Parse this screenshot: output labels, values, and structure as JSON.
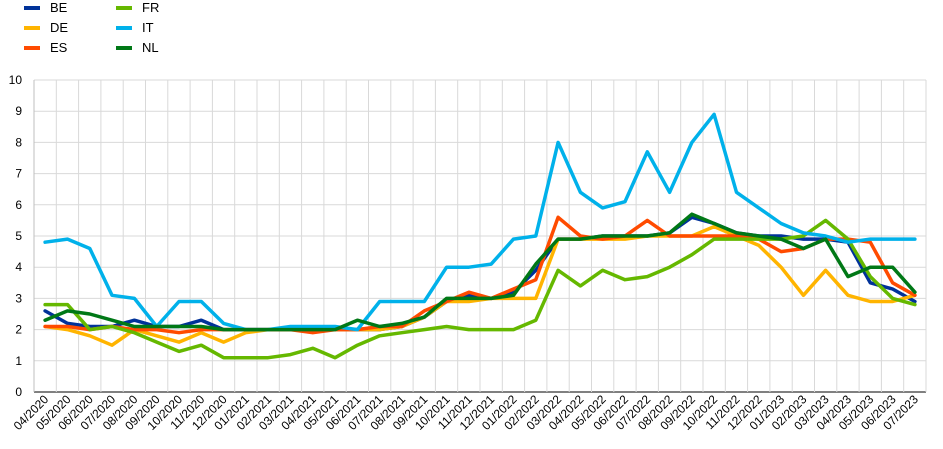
{
  "chart_data": {
    "type": "line",
    "title": "",
    "xlabel": "",
    "ylabel": "",
    "ylim": [
      0,
      10
    ],
    "yticks": [
      "0",
      "1",
      "2",
      "3",
      "4",
      "5",
      "6",
      "7",
      "8",
      "9",
      "10"
    ],
    "grid": true,
    "legend_position": "top-left",
    "categories": [
      "04/2020",
      "05/2020",
      "06/2020",
      "07/2020",
      "08/2020",
      "09/2020",
      "10/2020",
      "11/2020",
      "12/2020",
      "01/2021",
      "02/2021",
      "03/2021",
      "04/2021",
      "05/2021",
      "06/2021",
      "07/2021",
      "08/2021",
      "09/2021",
      "10/2021",
      "11/2021",
      "12/2021",
      "01/2022",
      "02/2022",
      "03/2022",
      "04/2022",
      "05/2022",
      "06/2022",
      "07/2022",
      "08/2022",
      "09/2022",
      "10/2022",
      "11/2022",
      "12/2022",
      "01/2023",
      "02/2023",
      "03/2023",
      "04/2023",
      "05/2023",
      "06/2023",
      "07/2023"
    ],
    "series": [
      {
        "name": "BE",
        "color": "#003299",
        "values": [
          2.6,
          2.2,
          2.1,
          2.1,
          2.3,
          2.1,
          2.1,
          2.3,
          2.0,
          2.0,
          2.0,
          2.0,
          2.0,
          2.0,
          2.0,
          2.0,
          2.1,
          2.4,
          2.9,
          3.1,
          3.0,
          3.2,
          3.9,
          4.9,
          4.9,
          5.0,
          5.0,
          5.0,
          5.1,
          5.6,
          5.4,
          5.1,
          5.0,
          5.0,
          4.9,
          4.9,
          4.8,
          3.5,
          3.3,
          2.9
        ]
      },
      {
        "name": "DE",
        "color": "#FFB400",
        "values": [
          2.1,
          2.0,
          1.8,
          1.5,
          2.0,
          1.8,
          1.6,
          1.9,
          1.6,
          1.9,
          2.0,
          2.0,
          2.0,
          2.0,
          2.0,
          2.0,
          2.1,
          2.4,
          2.9,
          2.9,
          3.0,
          3.0,
          3.0,
          4.9,
          4.9,
          4.9,
          4.9,
          5.0,
          5.0,
          5.0,
          5.3,
          5.0,
          4.7,
          4.0,
          3.1,
          3.9,
          3.1,
          2.9,
          2.9,
          3.1
        ]
      },
      {
        "name": "ES",
        "color": "#FF4B00",
        "values": [
          2.1,
          2.1,
          2.0,
          2.1,
          2.0,
          2.0,
          1.9,
          2.0,
          2.0,
          2.0,
          2.0,
          2.0,
          1.9,
          2.0,
          2.0,
          2.1,
          2.1,
          2.6,
          2.9,
          3.2,
          3.0,
          3.3,
          3.6,
          5.6,
          5.0,
          4.9,
          5.0,
          5.5,
          5.0,
          5.0,
          5.0,
          5.0,
          4.9,
          4.5,
          4.6,
          4.9,
          4.9,
          4.8,
          3.5,
          3.1
        ]
      },
      {
        "name": "FR",
        "color": "#65B800",
        "values": [
          2.8,
          2.8,
          2.0,
          2.1,
          1.9,
          1.6,
          1.3,
          1.5,
          1.1,
          1.1,
          1.1,
          1.2,
          1.4,
          1.1,
          1.5,
          1.8,
          1.9,
          2.0,
          2.1,
          2.0,
          2.0,
          2.0,
          2.3,
          3.9,
          3.4,
          3.9,
          3.6,
          3.7,
          4.0,
          4.4,
          4.9,
          4.9,
          4.9,
          4.9,
          5.0,
          5.5,
          4.9,
          3.7,
          3.0,
          2.8
        ]
      },
      {
        "name": "IT",
        "color": "#00B1EA",
        "values": [
          4.8,
          4.9,
          4.6,
          3.1,
          3.0,
          2.1,
          2.9,
          2.9,
          2.2,
          2.0,
          2.0,
          2.1,
          2.1,
          2.1,
          2.0,
          2.9,
          2.9,
          2.9,
          4.0,
          4.0,
          4.1,
          4.9,
          5.0,
          8.0,
          6.4,
          5.9,
          6.1,
          7.7,
          6.4,
          8.0,
          8.9,
          6.4,
          5.9,
          5.4,
          5.1,
          5.0,
          4.8,
          4.9,
          4.9,
          4.9
        ]
      },
      {
        "name": "NL",
        "color": "#007816",
        "values": [
          2.3,
          2.6,
          2.5,
          2.3,
          2.1,
          2.1,
          2.1,
          2.1,
          2.0,
          2.0,
          2.0,
          2.0,
          2.0,
          2.0,
          2.3,
          2.1,
          2.2,
          2.4,
          3.0,
          3.0,
          3.0,
          3.1,
          4.1,
          4.9,
          4.9,
          5.0,
          5.0,
          5.0,
          5.1,
          5.7,
          5.4,
          5.1,
          5.0,
          4.9,
          4.6,
          4.9,
          3.7,
          4.0,
          4.0,
          3.2
        ]
      }
    ]
  }
}
